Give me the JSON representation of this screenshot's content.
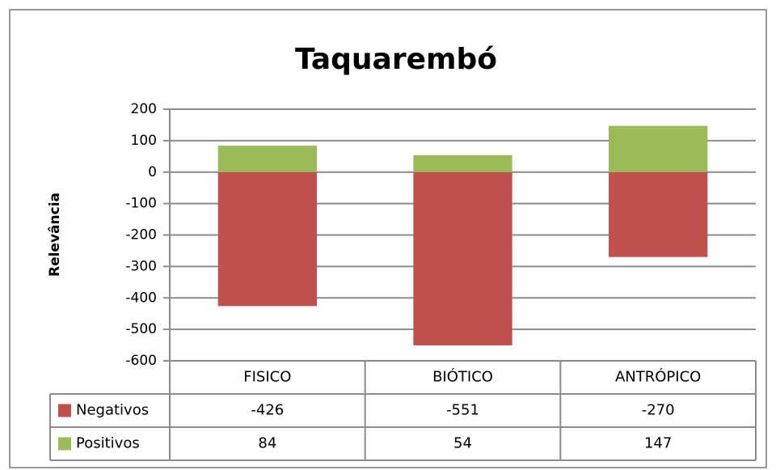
{
  "chart_data": {
    "type": "bar",
    "stacked": true,
    "title": "Taquarembó",
    "y_label": "Relevância",
    "categories": [
      "FISICO",
      "BIÓTICO",
      "ANTRÓPICO"
    ],
    "series": [
      {
        "name": "Negativos",
        "color": "#c0504d",
        "values": [
          -426,
          -551,
          -270
        ]
      },
      {
        "name": "Positivos",
        "color": "#9bbb59",
        "values": [
          84,
          54,
          147
        ]
      }
    ],
    "ylim": [
      -600,
      200
    ],
    "yticks": [
      -600,
      -500,
      -400,
      -300,
      -200,
      -100,
      0,
      100,
      200
    ],
    "grid": true,
    "data_table": true
  }
}
